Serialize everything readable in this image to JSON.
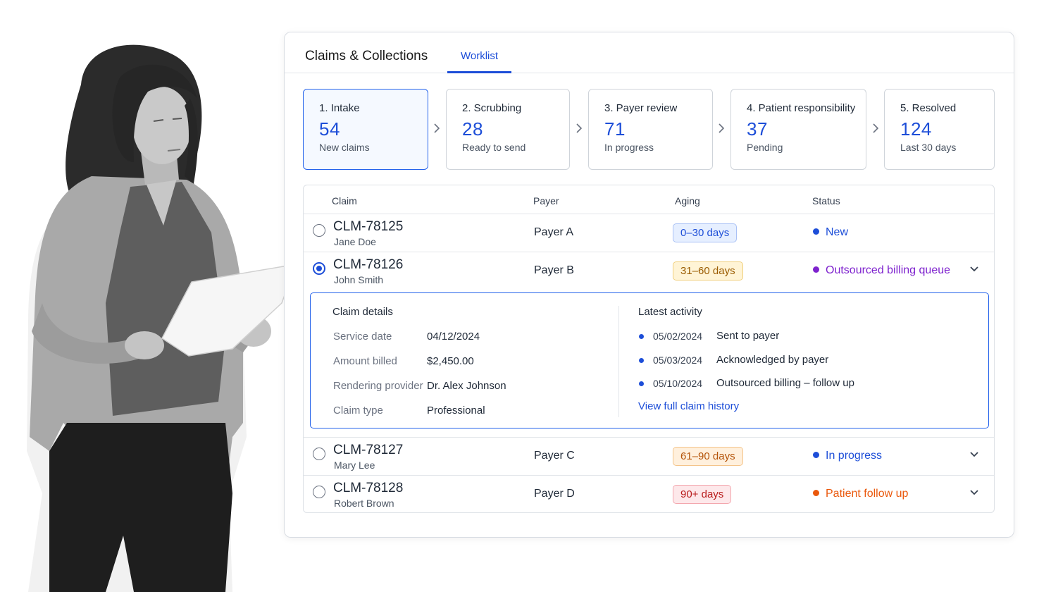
{
  "panel": {
    "title": "Claims & Collections",
    "tab_label": "Worklist"
  },
  "pipeline": [
    {
      "name": "1. Intake",
      "count": "54",
      "sub": "New claims",
      "active": true
    },
    {
      "name": "2. Scrubbing",
      "count": "28",
      "sub": "Ready to send",
      "active": false
    },
    {
      "name": "3. Payer review",
      "count": "71",
      "sub": "In progress",
      "active": false
    },
    {
      "name": "4. Patient responsibility",
      "count": "37",
      "sub": "Pending",
      "active": false
    },
    {
      "name": "5. Resolved",
      "count": "124",
      "sub": "Last 30 days",
      "active": false
    }
  ],
  "table": {
    "headers": {
      "claim": "Claim",
      "payer": "Payer",
      "aging": "Aging",
      "status": "Status"
    },
    "rows": [
      {
        "id": "CLM-78125",
        "name": "Jane Doe",
        "payer": "Payer A",
        "aging": "0–30 days",
        "status": "New",
        "selected": false
      },
      {
        "id": "CLM-78126",
        "name": "John Smith",
        "payer": "Payer B",
        "aging": "31–60 days",
        "status": "Outsourced billing queue",
        "selected": true
      },
      {
        "id": "CLM-78127",
        "name": "Mary Lee",
        "payer": "Payer C",
        "aging": "61–90 days",
        "status": "In progress",
        "selected": false
      },
      {
        "id": "CLM-78128",
        "name": "Robert Brown",
        "payer": "Payer D",
        "aging": "90+ days",
        "status": "Patient follow up",
        "selected": false
      }
    ]
  },
  "details": {
    "title": "Claim details",
    "fields": [
      {
        "label": "Service date",
        "value": "04/12/2024"
      },
      {
        "label": "Amount billed",
        "value": "$2,450.00"
      },
      {
        "label": "Rendering provider",
        "value": "Dr. Alex Johnson"
      },
      {
        "label": "Claim type",
        "value": "Professional"
      }
    ],
    "activity_title": "Latest activity",
    "activity": [
      {
        "date": "05/02/2024",
        "text": "Sent to payer"
      },
      {
        "date": "05/03/2024",
        "text": "Acknowledged by payer"
      },
      {
        "date": "05/10/2024",
        "text": "Outsourced billing – follow up"
      }
    ],
    "history_link": "View full claim history"
  },
  "colors": {
    "accent": "#1d4ed8",
    "status_new": "#1d4ed8",
    "status_outsourced": "#7e22ce",
    "status_in_progress": "#1d4ed8",
    "status_patient_follow_up": "#ea580c"
  },
  "icons": {
    "stage_separator": "chevron-right-icon",
    "row_expand": "chevron-down-icon"
  }
}
